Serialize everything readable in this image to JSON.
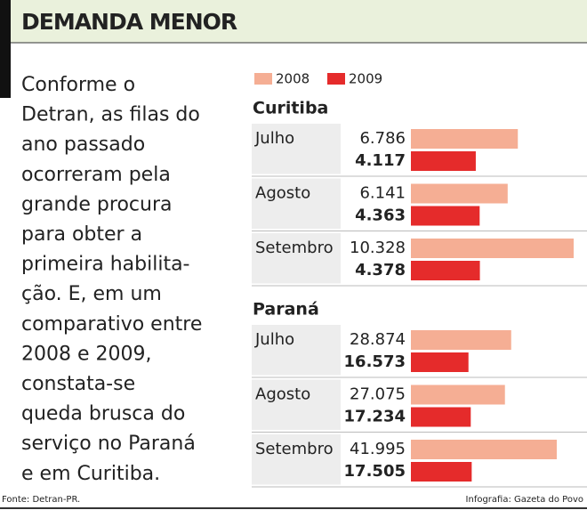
{
  "title": "DEMANDA MENOR",
  "text": [
    "Conforme o",
    "Detran, as filas do",
    "ano passado",
    "ocorreram pela",
    "grande procura",
    "para obter a",
    "primeira habilita-",
    "ção. E, em um",
    "comparativo entre",
    "2008 e 2009,",
    "constata-se",
    "queda brusca do",
    "serviço no Paraná",
    "e em Curitiba."
  ],
  "source": "Fonte: Detran-PR.",
  "credit": "Infografia: Gazeta do Povo",
  "chart_data": {
    "type": "bar",
    "orientation": "horizontal",
    "groups": [
      "Curitiba",
      "Paraná"
    ],
    "categories": [
      [
        "Julho",
        "Agosto",
        "Setembro"
      ],
      [
        "Julho",
        "Agosto",
        "Setembro"
      ]
    ],
    "series": [
      {
        "name": "2008",
        "color": "#f5ae94",
        "values": [
          [
            6786,
            6141,
            10328
          ],
          [
            28874,
            27075,
            41995
          ]
        ],
        "value_labels": [
          [
            "6.786",
            "6.141",
            "10.328"
          ],
          [
            "28.874",
            "27.075",
            "41.995"
          ]
        ]
      },
      {
        "name": "2009",
        "color": "#e52b2b",
        "values": [
          [
            4117,
            4363,
            4378
          ],
          [
            16573,
            17234,
            17505
          ]
        ],
        "value_labels": [
          [
            "4.117",
            "4.363",
            "4.378"
          ],
          [
            "16.573",
            "17.234",
            "17.505"
          ]
        ]
      }
    ]
  }
}
